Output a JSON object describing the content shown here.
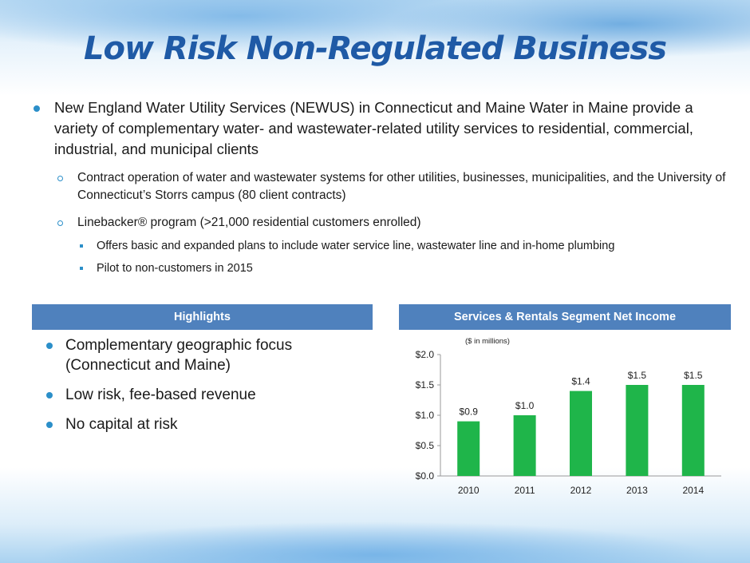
{
  "title": "Low Risk Non-Regulated Business",
  "main_bullet": "New England Water Utility Services (NEWUS) in Connecticut and Maine Water in Maine provide a variety of complementary water- and wastewater-related utility services to residential, commercial, industrial, and municipal clients",
  "sub_bullets": [
    "Contract operation of water and wastewater systems for other utilities, businesses, municipalities, and the University of Connecticut’s Storrs campus (80 client contracts)",
    "Linebacker® program (>21,000 residential customers enrolled)"
  ],
  "sub_sub_bullets": [
    "Offers basic and expanded plans to include water service line, wastewater line and in-home plumbing",
    "Pilot to non-customers in 2015"
  ],
  "highlights": {
    "header": "Highlights",
    "items": [
      "Complementary geographic focus (Connecticut and Maine)",
      "Low risk, fee-based revenue",
      "No capital at risk"
    ]
  },
  "chart_header": "Services & Rentals Segment Net Income",
  "colors": {
    "title": "#1f5aa6",
    "header_bg": "#4f81bd",
    "bar": "#1fb54a",
    "bullet": "#2b8fc9"
  },
  "chart_data": {
    "type": "bar",
    "unit_note": "($ in millions)",
    "categories": [
      "2010",
      "2011",
      "2012",
      "2013",
      "2014"
    ],
    "values": [
      0.9,
      1.0,
      1.4,
      1.5,
      1.5
    ],
    "data_labels": [
      "$0.9",
      "$1.0",
      "$1.4",
      "$1.5",
      "$1.5"
    ],
    "y_ticks": [
      "$0.0",
      "$0.5",
      "$1.0",
      "$1.5",
      "$2.0"
    ],
    "ylim": [
      0,
      2.0
    ],
    "grid": false,
    "legend": "none"
  }
}
